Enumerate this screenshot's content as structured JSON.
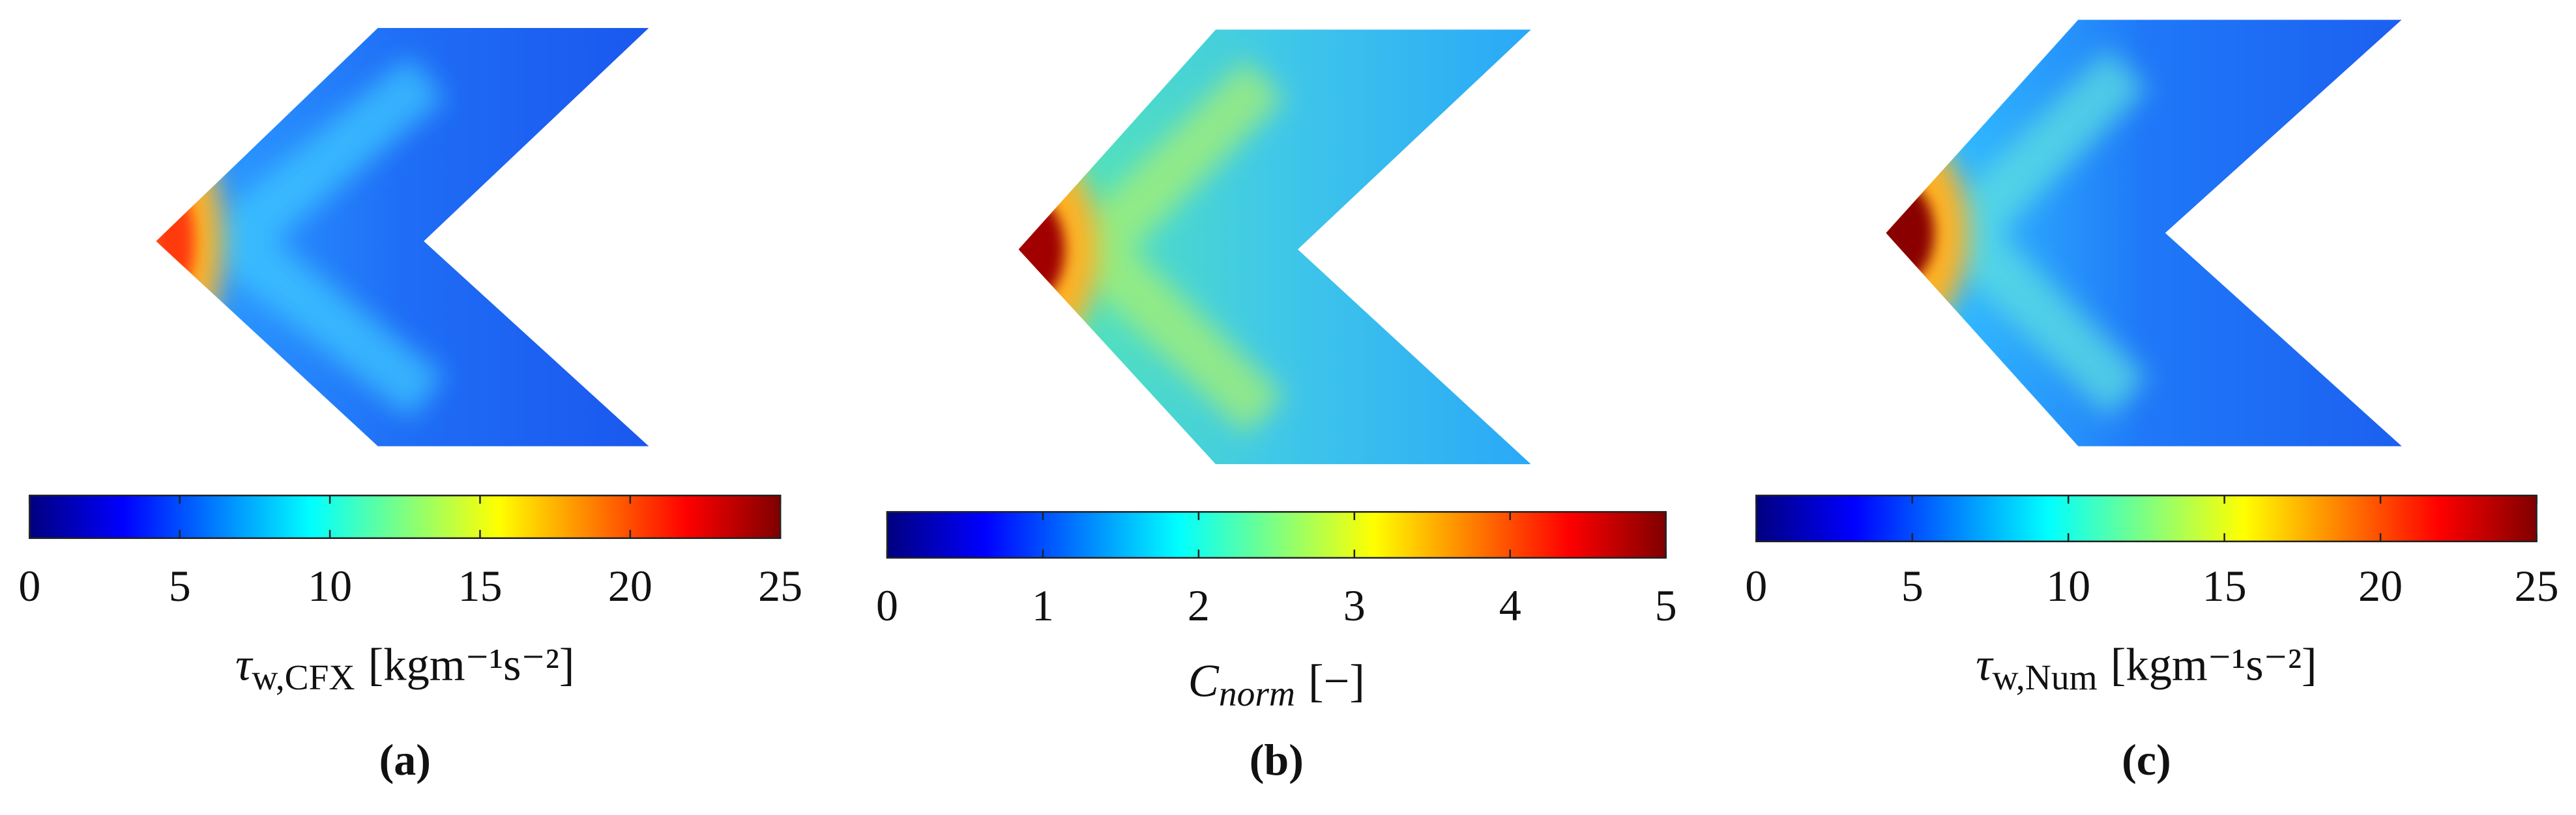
{
  "chart_data": [
    {
      "type": "heatmap",
      "caption": "(a)",
      "label": {
        "symbol": "τ",
        "subscript": "w,CFX",
        "unit": "[kgm⁻¹s⁻²]"
      },
      "clim": [
        0,
        25
      ],
      "cticks": [
        0,
        5,
        10,
        15,
        20,
        25
      ]
    },
    {
      "type": "heatmap",
      "caption": "(b)",
      "label": {
        "symbol": "C",
        "subscript": "norm",
        "unit": "[−]"
      },
      "clim": [
        0,
        5
      ],
      "cticks": [
        0,
        1,
        2,
        3,
        4,
        5
      ]
    },
    {
      "type": "heatmap",
      "caption": "(c)",
      "label": {
        "symbol": "τ",
        "subscript": "w,Num",
        "unit": "[kgm⁻¹s⁻²]"
      },
      "clim": [
        0,
        25
      ],
      "cticks": [
        0,
        5,
        10,
        15,
        20,
        25
      ]
    }
  ]
}
